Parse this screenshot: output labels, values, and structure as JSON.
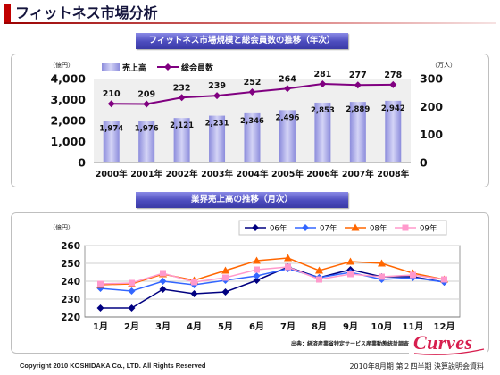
{
  "slide": {
    "title": "フィットネス市場分析",
    "copyright": "Copyright 2010 KOSHIDAKA Co., LTD. All Rights Reserved",
    "document_label": "2010年8月期 第２四半期 決算説明会資料",
    "logo_text": "Curves"
  },
  "theme": {
    "title_accent": "#c00000",
    "banner": "#4b4bbd",
    "logo": "#d71f4f"
  },
  "chart_data": [
    {
      "type": "bar+line",
      "title": "フィットネス市場規模と総会員数の推移（年次）",
      "categories": [
        "2000年",
        "2001年",
        "2002年",
        "2003年",
        "2004年",
        "2005年",
        "2006年",
        "2007年",
        "2008年"
      ],
      "y_left": {
        "unit_label": "（億円）",
        "range": [
          0,
          4000
        ],
        "ticks": [
          0,
          1000,
          2000,
          3000,
          4000
        ]
      },
      "y_right": {
        "unit_label": "（万人）",
        "range": [
          0,
          300
        ],
        "ticks": [
          0,
          100,
          200,
          300
        ]
      },
      "series": [
        {
          "name": "売上高",
          "kind": "bar",
          "axis": "left",
          "color": "#8c8cdc",
          "values": [
            1974,
            1976,
            2121,
            2231,
            2346,
            2496,
            2853,
            2889,
            2942
          ]
        },
        {
          "name": "総会員数",
          "kind": "line",
          "axis": "right",
          "color": "#800080",
          "marker": "diamond",
          "values": [
            210,
            209,
            232,
            239,
            252,
            264,
            281,
            277,
            278
          ]
        }
      ],
      "data_labels": true,
      "legend": "top-left",
      "grid": false
    },
    {
      "type": "line",
      "title": "業界売上高の推移（月次）",
      "categories": [
        "1月",
        "2月",
        "3月",
        "4月",
        "5月",
        "6月",
        "7月",
        "8月",
        "9月",
        "10月",
        "11月",
        "12月"
      ],
      "y": {
        "unit_label": "（億円）",
        "range": [
          220,
          260
        ],
        "ticks": [
          220,
          230,
          240,
          250,
          260
        ]
      },
      "series": [
        {
          "name": "06年",
          "color": "#000080",
          "marker": "diamond",
          "values": [
            225,
            225,
            235.5,
            233,
            234,
            240.5,
            248,
            242,
            246.5,
            242.5,
            242.5,
            239.5
          ]
        },
        {
          "name": "07年",
          "color": "#3366ff",
          "marker": "diamond",
          "values": [
            236,
            234.5,
            240,
            238,
            240.5,
            243,
            247,
            242,
            245,
            241,
            242,
            239.5
          ]
        },
        {
          "name": "08年",
          "color": "#ff6600",
          "marker": "triangle",
          "values": [
            238,
            238.5,
            244,
            240.5,
            246,
            251.5,
            253,
            246,
            251,
            250,
            244.5,
            241
          ]
        },
        {
          "name": "09年",
          "color": "#ff99cc",
          "marker": "square",
          "values": [
            238.5,
            239,
            244.5,
            239.5,
            242,
            246.5,
            248,
            241,
            244,
            242.5,
            243.5,
            241
          ]
        }
      ],
      "legend": "top-right",
      "grid": true,
      "source": "出典：経済産業省特定サービス産業動態統計調査"
    }
  ]
}
